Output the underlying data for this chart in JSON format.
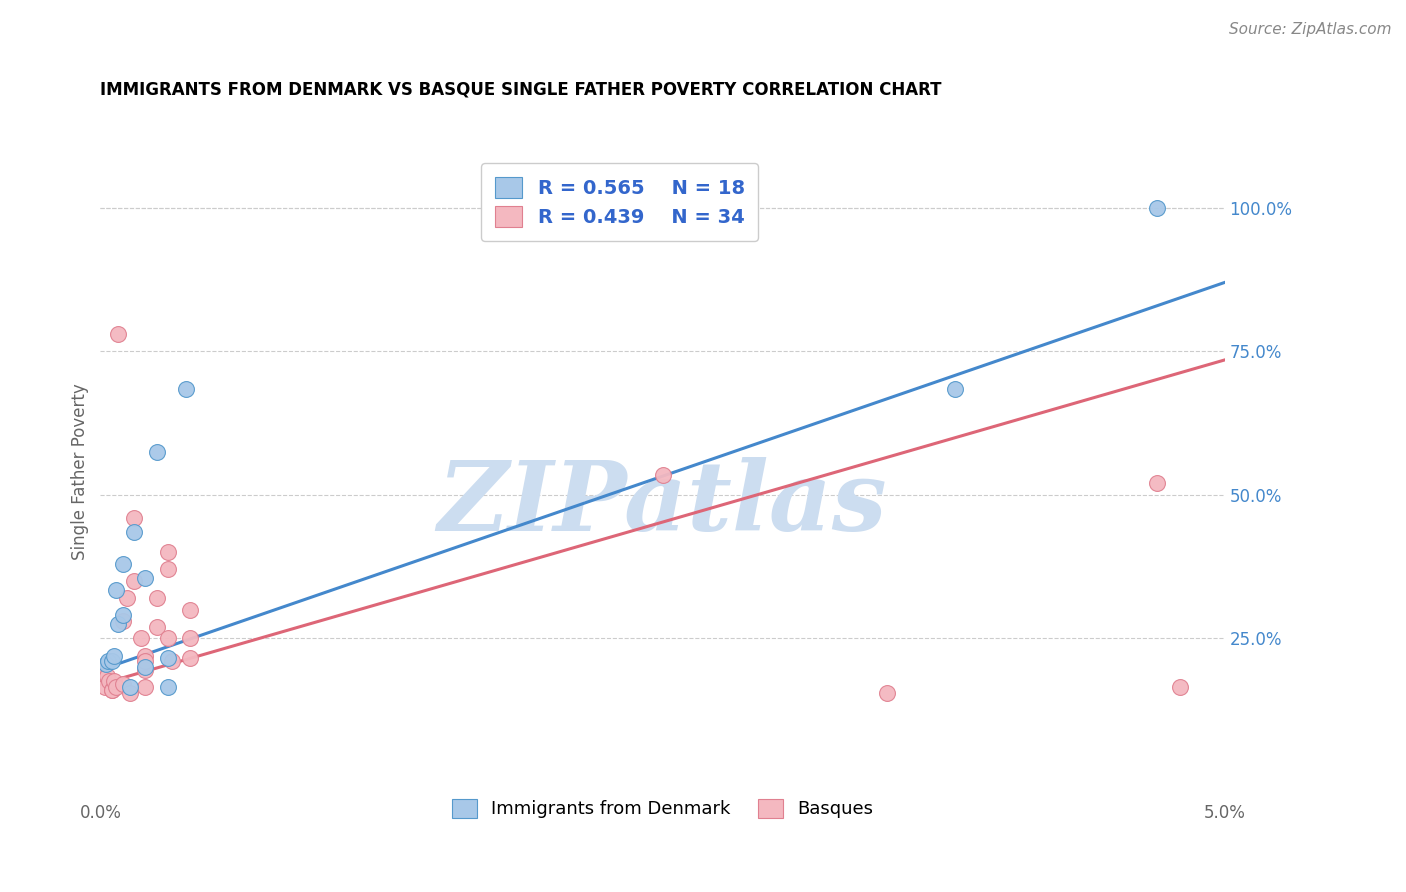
{
  "title": "IMMIGRANTS FROM DENMARK VS BASQUE SINGLE FATHER POVERTY CORRELATION CHART",
  "source": "Source: ZipAtlas.com",
  "ylabel": "Single Father Poverty",
  "right_yticks": [
    "100.0%",
    "75.0%",
    "50.0%",
    "25.0%"
  ],
  "right_ytick_vals": [
    1.0,
    0.75,
    0.5,
    0.25
  ],
  "blue_color": "#a8c8e8",
  "pink_color": "#f4b8c0",
  "blue_edge_color": "#5599cc",
  "pink_edge_color": "#e08090",
  "blue_line_color": "#4488cc",
  "pink_line_color": "#dd6677",
  "watermark": "ZIPatlas",
  "watermark_color": "#ccddf0",
  "blue_x": [
    0.00025,
    0.00035,
    0.0005,
    0.0006,
    0.0007,
    0.0008,
    0.001,
    0.001,
    0.0013,
    0.0015,
    0.002,
    0.002,
    0.0025,
    0.003,
    0.003,
    0.0038,
    0.038,
    0.047
  ],
  "blue_y": [
    0.205,
    0.21,
    0.21,
    0.22,
    0.335,
    0.275,
    0.29,
    0.38,
    0.165,
    0.435,
    0.355,
    0.2,
    0.575,
    0.215,
    0.165,
    0.685,
    0.685,
    1.0
  ],
  "pink_x": [
    5e-05,
    0.0001,
    0.0002,
    0.0003,
    0.0004,
    0.0005,
    0.0005,
    0.0006,
    0.0007,
    0.0008,
    0.001,
    0.001,
    0.0012,
    0.0013,
    0.0015,
    0.0015,
    0.0018,
    0.002,
    0.002,
    0.002,
    0.002,
    0.0025,
    0.0025,
    0.003,
    0.003,
    0.0032,
    0.003,
    0.004,
    0.004,
    0.004,
    0.025,
    0.035,
    0.047,
    0.048
  ],
  "pink_y": [
    0.195,
    0.185,
    0.165,
    0.185,
    0.175,
    0.16,
    0.16,
    0.175,
    0.165,
    0.78,
    0.28,
    0.17,
    0.32,
    0.155,
    0.46,
    0.35,
    0.25,
    0.22,
    0.195,
    0.21,
    0.165,
    0.32,
    0.27,
    0.37,
    0.25,
    0.21,
    0.4,
    0.25,
    0.3,
    0.215,
    0.535,
    0.155,
    0.52,
    0.165
  ],
  "blue_line_x0": 0.0,
  "blue_line_x1": 0.05,
  "blue_line_y0": 0.195,
  "blue_line_y1": 0.87,
  "pink_line_x0": 0.0,
  "pink_line_x1": 0.05,
  "pink_line_y0": 0.17,
  "pink_line_y1": 0.735,
  "xlim": [
    0.0,
    0.05
  ],
  "ylim": [
    -0.02,
    1.1
  ],
  "title_fontsize": 12,
  "legend_fontsize": 14,
  "tick_fontsize": 12,
  "source_fontsize": 11
}
